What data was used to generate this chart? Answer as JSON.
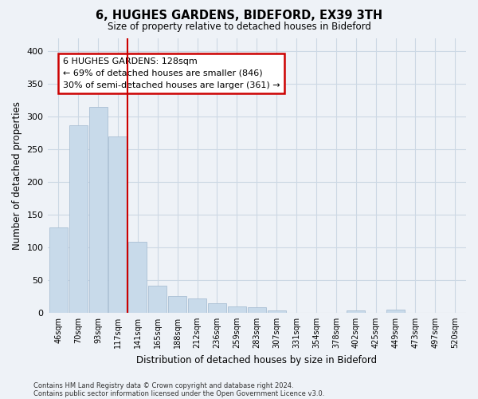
{
  "title": "6, HUGHES GARDENS, BIDEFORD, EX39 3TH",
  "subtitle": "Size of property relative to detached houses in Bideford",
  "xlabel": "Distribution of detached houses by size in Bideford",
  "ylabel": "Number of detached properties",
  "footnote1": "Contains HM Land Registry data © Crown copyright and database right 2024.",
  "footnote2": "Contains public sector information licensed under the Open Government Licence v3.0.",
  "bar_labels": [
    "46sqm",
    "70sqm",
    "93sqm",
    "117sqm",
    "141sqm",
    "165sqm",
    "188sqm",
    "212sqm",
    "236sqm",
    "259sqm",
    "283sqm",
    "307sqm",
    "331sqm",
    "354sqm",
    "378sqm",
    "402sqm",
    "425sqm",
    "449sqm",
    "473sqm",
    "497sqm",
    "520sqm"
  ],
  "bar_values": [
    130,
    286,
    314,
    270,
    109,
    41,
    25,
    22,
    14,
    10,
    9,
    3,
    0,
    0,
    0,
    4,
    0,
    5,
    0,
    0,
    0
  ],
  "bar_color": "#c8daea",
  "bar_edge_color": "#aabfd4",
  "ylim": [
    0,
    420
  ],
  "yticks": [
    0,
    50,
    100,
    150,
    200,
    250,
    300,
    350,
    400
  ],
  "vline_x_index": 3.5,
  "vline_color": "#cc0000",
  "annotation_title": "6 HUGHES GARDENS: 128sqm",
  "annotation_line1": "← 69% of detached houses are smaller (846)",
  "annotation_line2": "30% of semi-detached houses are larger (361) →",
  "annotation_box_color": "#ffffff",
  "annotation_box_edge": "#cc0000",
  "grid_color": "#ccd8e4",
  "background_color": "#eef2f7"
}
